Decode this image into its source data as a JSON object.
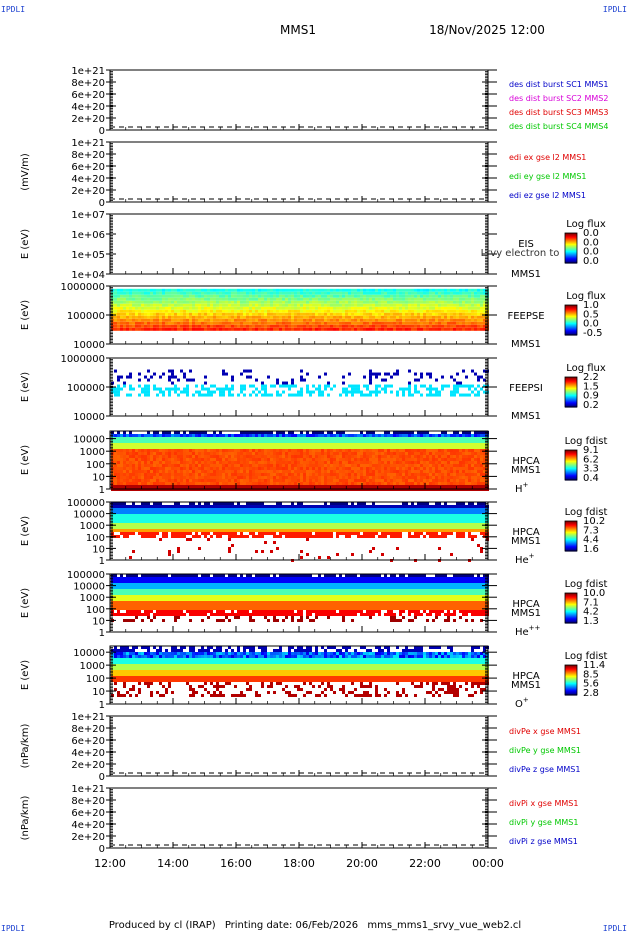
{
  "header": {
    "corner_label": "IPDLI",
    "mission": "MMS1",
    "datetime": "18/Nov/2025 12:00"
  },
  "footer": {
    "produced_by": "Produced by cl (IRAP)",
    "printing_date": "Printing date: 06/Feb/2026",
    "filename": "mms_mms1_srvy_vue_web2.cl"
  },
  "chart_data": {
    "type": "stacked-timeseries",
    "x_tick_labels": [
      "12:00",
      "14:00",
      "16:00",
      "18:00",
      "20:00",
      "22:00",
      "00:00"
    ],
    "x_range_hours": [
      12,
      24
    ],
    "overlay_text": "Lrvy electron to",
    "panels": [
      {
        "id": "dist",
        "type": "line",
        "ylabel": "",
        "yticks": [
          "1e+21",
          "8e+20",
          "6e+20",
          "4e+20",
          "2e+20",
          "0"
        ],
        "ytick_values": [
          1e+21,
          8e+20,
          6e+20,
          4e+20,
          2e+20,
          0
        ],
        "ylim": [
          0,
          1e+21
        ],
        "dashed_zero": true,
        "legend": [
          {
            "text": "des dist burst SC1 MMS1",
            "color": "#0000c8"
          },
          {
            "text": "des dist burst SC2 MMS2",
            "color": "#d800d8"
          },
          {
            "text": "des dist burst SC3 MMS3",
            "color": "#e00000"
          },
          {
            "text": "des dist burst SC4 MMS4",
            "color": "#00c800"
          }
        ]
      },
      {
        "id": "edi",
        "type": "line",
        "ylabel": "(mV/m)",
        "yticks": [
          "1e+21",
          "8e+20",
          "6e+20",
          "4e+20",
          "2e+20",
          "0"
        ],
        "ytick_values": [
          1e+21,
          8e+20,
          6e+20,
          4e+20,
          2e+20,
          0
        ],
        "ylim": [
          0,
          1e+21
        ],
        "dashed_zero": true,
        "legend": [
          {
            "text": "edi ex gse l2 MMS1",
            "color": "#e00000"
          },
          {
            "text": "edi ey gse l2 MMS1",
            "color": "#00c800"
          },
          {
            "text": "edi ez gse l2 MMS1",
            "color": "#0000c8"
          }
        ]
      },
      {
        "id": "eis",
        "type": "spectrogram",
        "ylabel": "E (eV)",
        "log": true,
        "yticks": [
          "1e+07",
          "1e+06",
          "1e+05",
          "1e+04"
        ],
        "ytick_values": [
          10000000.0,
          1000000.0,
          100000.0,
          10000.0
        ],
        "ylim": [
          10000.0,
          10000000.0
        ],
        "right_labels": [
          "EIS",
          "MMS1"
        ],
        "cbar_title": "Log flux",
        "cbar_ticks": [
          "0.0",
          "0.0",
          "0.0",
          "0.0"
        ],
        "empty": true
      },
      {
        "id": "feepse",
        "type": "spectrogram",
        "ylabel": "E (eV)",
        "log": true,
        "yticks": [
          "1000000",
          "100000",
          "10000"
        ],
        "ytick_values": [
          1000000.0,
          100000.0,
          10000.0
        ],
        "ylim": [
          10000.0,
          1000000.0
        ],
        "right_labels": [
          "FEEPSE",
          "MMS1"
        ],
        "cbar_title": "Log flux",
        "cbar_ticks": [
          "1.0",
          "0.5",
          "0.0",
          "-0.5"
        ],
        "cbar_range": [
          -0.5,
          1.0
        ],
        "band_E": [
          30000,
          800000
        ]
      },
      {
        "id": "feepsi",
        "type": "spectrogram",
        "ylabel": "E (eV)",
        "log": true,
        "yticks": [
          "1000000",
          "100000",
          "10000"
        ],
        "ytick_values": [
          1000000.0,
          100000.0,
          10000.0
        ],
        "ylim": [
          10000.0,
          1000000.0
        ],
        "right_labels": [
          "FEEPSI",
          "MMS1"
        ],
        "cbar_title": "Log flux",
        "cbar_ticks": [
          "2.2",
          "1.5",
          "0.9",
          "0.2"
        ],
        "cbar_range": [
          0.2,
          2.2
        ],
        "band_E": [
          50000,
          400000
        ]
      },
      {
        "id": "hpca_h",
        "type": "spectrogram",
        "ylabel": "E (eV)",
        "log": true,
        "yticks": [
          "10000",
          "1000",
          "100",
          "10",
          "1"
        ],
        "ytick_values": [
          10000.0,
          1000.0,
          100.0,
          10.0,
          1
        ],
        "ylim": [
          1,
          40000
        ],
        "right_labels": [
          "HPCA",
          "MMS1"
        ],
        "species": "H",
        "species_sup": "+",
        "cbar_title": "Log fdist",
        "cbar_ticks": [
          "9.1",
          "6.2",
          "3.3",
          "0.4"
        ],
        "cbar_range": [
          0.4,
          9.1
        ]
      },
      {
        "id": "hpca_he",
        "type": "spectrogram",
        "ylabel": "E (eV)",
        "log": true,
        "yticks": [
          "100000",
          "10000",
          "1000",
          "100",
          "10",
          "1"
        ],
        "ytick_values": [
          100000.0,
          10000.0,
          1000.0,
          100.0,
          10.0,
          1
        ],
        "ylim": [
          1,
          100000
        ],
        "right_labels": [
          "HPCA",
          "MMS1"
        ],
        "species": "He",
        "species_sup": "+",
        "cbar_title": "Log fdist",
        "cbar_ticks": [
          "10.2",
          "7.3",
          "4.4",
          "1.6"
        ],
        "cbar_range": [
          1.6,
          10.2
        ]
      },
      {
        "id": "hpca_he2",
        "type": "spectrogram",
        "ylabel": "E (eV)",
        "log": true,
        "yticks": [
          "100000",
          "10000",
          "1000",
          "100",
          "10",
          "1"
        ],
        "ytick_values": [
          100000.0,
          10000.0,
          1000.0,
          100.0,
          10.0,
          1
        ],
        "ylim": [
          1,
          100000
        ],
        "right_labels": [
          "HPCA",
          "MMS1"
        ],
        "species": "He",
        "species_sup": "++",
        "cbar_title": "Log fdist",
        "cbar_ticks": [
          "10.0",
          "7.1",
          "4.2",
          "1.3"
        ],
        "cbar_range": [
          1.3,
          10.0
        ]
      },
      {
        "id": "hpca_o",
        "type": "spectrogram",
        "ylabel": "E (eV)",
        "log": true,
        "yticks": [
          "10000",
          "1000",
          "100",
          "10",
          "1"
        ],
        "ytick_values": [
          10000.0,
          1000.0,
          100.0,
          10.0,
          1
        ],
        "ylim": [
          1,
          30000
        ],
        "right_labels": [
          "HPCA",
          "MMS1"
        ],
        "species": "O",
        "species_sup": "+",
        "cbar_title": "Log fdist",
        "cbar_ticks": [
          "11.4",
          "8.5",
          "5.6",
          "2.8"
        ],
        "cbar_range": [
          2.8,
          11.4
        ]
      },
      {
        "id": "divpe",
        "type": "line",
        "ylabel": "(nPa/km)",
        "yticks": [
          "1e+21",
          "8e+20",
          "6e+20",
          "4e+20",
          "2e+20",
          "0"
        ],
        "ytick_values": [
          1e+21,
          8e+20,
          6e+20,
          4e+20,
          2e+20,
          0
        ],
        "ylim": [
          0,
          1e+21
        ],
        "dashed_zero": true,
        "legend": [
          {
            "text": "divPe x gse MMS1",
            "color": "#e00000"
          },
          {
            "text": "divPe y gse MMS1",
            "color": "#00c800"
          },
          {
            "text": "divPe z gse MMS1",
            "color": "#0000c8"
          }
        ]
      },
      {
        "id": "divpi",
        "type": "line",
        "ylabel": "(nPa/km)",
        "yticks": [
          "1e+21",
          "8e+20",
          "6e+20",
          "4e+20",
          "2e+20",
          "0"
        ],
        "ytick_values": [
          1e+21,
          8e+20,
          6e+20,
          4e+20,
          2e+20,
          0
        ],
        "ylim": [
          0,
          1e+21
        ],
        "dashed_zero": true,
        "legend": [
          {
            "text": "divPi x gse MMS1",
            "color": "#e00000"
          },
          {
            "text": "divPi y gse MMS1",
            "color": "#00c800"
          },
          {
            "text": "divPi z gse MMS1",
            "color": "#0000c8"
          }
        ]
      }
    ]
  }
}
